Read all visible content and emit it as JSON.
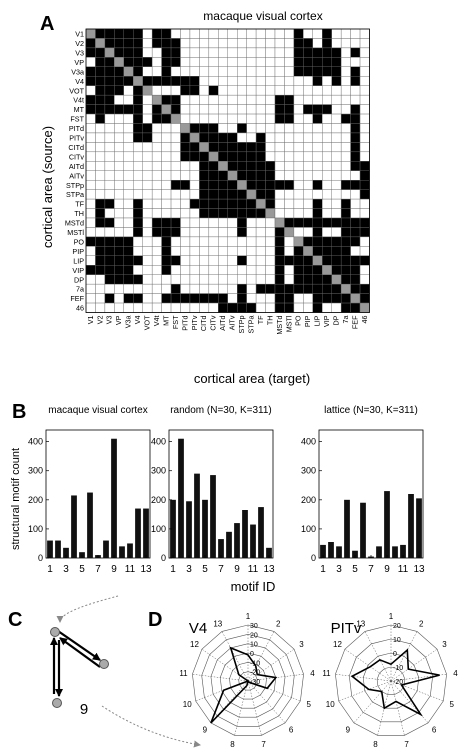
{
  "panel_labels": {
    "a": "A",
    "b": "B",
    "c": "C",
    "d": "D"
  },
  "matrix": {
    "title": "macaque visual cortex",
    "ylabel": "cortical area (source)",
    "xlabel": "cortical area (target)",
    "areas": [
      "V1",
      "V2",
      "V3",
      "VP",
      "V3a",
      "V4",
      "VOT",
      "V4t",
      "MT",
      "FST",
      "PITd",
      "PITv",
      "CITd",
      "CITv",
      "AITd",
      "AITv",
      "STPp",
      "STPa",
      "TF",
      "TH",
      "MSTd",
      "MSTl",
      "PO",
      "PIP",
      "LIP",
      "VIP",
      "DP",
      "7a",
      "FEF",
      "46"
    ],
    "edges": [
      [
        0,
        1
      ],
      [
        0,
        2
      ],
      [
        0,
        3
      ],
      [
        0,
        4
      ],
      [
        0,
        5
      ],
      [
        0,
        7
      ],
      [
        0,
        8
      ],
      [
        0,
        22
      ],
      [
        0,
        25
      ],
      [
        1,
        0
      ],
      [
        1,
        2
      ],
      [
        1,
        3
      ],
      [
        1,
        4
      ],
      [
        1,
        5
      ],
      [
        1,
        7
      ],
      [
        1,
        8
      ],
      [
        1,
        9
      ],
      [
        1,
        22
      ],
      [
        1,
        23
      ],
      [
        1,
        25
      ],
      [
        2,
        0
      ],
      [
        2,
        1
      ],
      [
        2,
        3
      ],
      [
        2,
        4
      ],
      [
        2,
        5
      ],
      [
        2,
        8
      ],
      [
        2,
        9
      ],
      [
        2,
        22
      ],
      [
        2,
        23
      ],
      [
        2,
        24
      ],
      [
        2,
        25
      ],
      [
        2,
        26
      ],
      [
        2,
        28
      ],
      [
        3,
        1
      ],
      [
        3,
        2
      ],
      [
        3,
        4
      ],
      [
        3,
        5
      ],
      [
        3,
        6
      ],
      [
        3,
        8
      ],
      [
        3,
        9
      ],
      [
        3,
        22
      ],
      [
        3,
        23
      ],
      [
        3,
        24
      ],
      [
        3,
        25
      ],
      [
        3,
        26
      ],
      [
        4,
        0
      ],
      [
        4,
        1
      ],
      [
        4,
        2
      ],
      [
        4,
        3
      ],
      [
        4,
        5
      ],
      [
        4,
        8
      ],
      [
        4,
        22
      ],
      [
        4,
        23
      ],
      [
        4,
        24
      ],
      [
        4,
        25
      ],
      [
        4,
        26
      ],
      [
        4,
        28
      ],
      [
        5,
        0
      ],
      [
        5,
        1
      ],
      [
        5,
        2
      ],
      [
        5,
        3
      ],
      [
        5,
        4
      ],
      [
        5,
        6
      ],
      [
        5,
        7
      ],
      [
        5,
        8
      ],
      [
        5,
        9
      ],
      [
        5,
        10
      ],
      [
        5,
        11
      ],
      [
        5,
        24
      ],
      [
        5,
        26
      ],
      [
        5,
        28
      ],
      [
        6,
        1
      ],
      [
        6,
        2
      ],
      [
        6,
        3
      ],
      [
        6,
        5
      ],
      [
        6,
        10
      ],
      [
        6,
        11
      ],
      [
        6,
        13
      ],
      [
        7,
        0
      ],
      [
        7,
        1
      ],
      [
        7,
        2
      ],
      [
        7,
        5
      ],
      [
        7,
        8
      ],
      [
        7,
        9
      ],
      [
        7,
        20
      ],
      [
        7,
        21
      ],
      [
        8,
        0
      ],
      [
        8,
        1
      ],
      [
        8,
        2
      ],
      [
        8,
        3
      ],
      [
        8,
        4
      ],
      [
        8,
        5
      ],
      [
        8,
        7
      ],
      [
        8,
        9
      ],
      [
        8,
        20
      ],
      [
        8,
        21
      ],
      [
        8,
        23
      ],
      [
        8,
        24
      ],
      [
        8,
        25
      ],
      [
        8,
        28
      ],
      [
        9,
        1
      ],
      [
        9,
        5
      ],
      [
        9,
        7
      ],
      [
        9,
        8
      ],
      [
        9,
        20
      ],
      [
        9,
        21
      ],
      [
        9,
        24
      ],
      [
        9,
        27
      ],
      [
        9,
        28
      ],
      [
        10,
        5
      ],
      [
        10,
        6
      ],
      [
        10,
        11
      ],
      [
        10,
        12
      ],
      [
        10,
        13
      ],
      [
        10,
        16
      ],
      [
        10,
        28
      ],
      [
        11,
        5
      ],
      [
        11,
        6
      ],
      [
        11,
        10
      ],
      [
        11,
        12
      ],
      [
        11,
        13
      ],
      [
        11,
        14
      ],
      [
        11,
        15
      ],
      [
        11,
        18
      ],
      [
        11,
        28
      ],
      [
        12,
        10
      ],
      [
        12,
        11
      ],
      [
        12,
        13
      ],
      [
        12,
        14
      ],
      [
        12,
        15
      ],
      [
        12,
        16
      ],
      [
        12,
        17
      ],
      [
        12,
        18
      ],
      [
        12,
        28
      ],
      [
        13,
        10
      ],
      [
        13,
        11
      ],
      [
        13,
        12
      ],
      [
        13,
        14
      ],
      [
        13,
        15
      ],
      [
        13,
        16
      ],
      [
        13,
        17
      ],
      [
        13,
        18
      ],
      [
        13,
        28
      ],
      [
        14,
        12
      ],
      [
        14,
        13
      ],
      [
        14,
        15
      ],
      [
        14,
        16
      ],
      [
        14,
        17
      ],
      [
        14,
        18
      ],
      [
        14,
        19
      ],
      [
        14,
        28
      ],
      [
        14,
        29
      ],
      [
        15,
        12
      ],
      [
        15,
        13
      ],
      [
        15,
        14
      ],
      [
        15,
        16
      ],
      [
        15,
        17
      ],
      [
        15,
        18
      ],
      [
        15,
        19
      ],
      [
        15,
        29
      ],
      [
        16,
        9
      ],
      [
        16,
        10
      ],
      [
        16,
        12
      ],
      [
        16,
        13
      ],
      [
        16,
        14
      ],
      [
        16,
        15
      ],
      [
        16,
        17
      ],
      [
        16,
        18
      ],
      [
        16,
        19
      ],
      [
        16,
        20
      ],
      [
        16,
        21
      ],
      [
        16,
        24
      ],
      [
        16,
        27
      ],
      [
        16,
        28
      ],
      [
        16,
        29
      ],
      [
        17,
        12
      ],
      [
        17,
        13
      ],
      [
        17,
        14
      ],
      [
        17,
        15
      ],
      [
        17,
        16
      ],
      [
        17,
        18
      ],
      [
        17,
        19
      ],
      [
        17,
        29
      ],
      [
        18,
        1
      ],
      [
        18,
        2
      ],
      [
        18,
        5
      ],
      [
        18,
        11
      ],
      [
        18,
        12
      ],
      [
        18,
        13
      ],
      [
        18,
        14
      ],
      [
        18,
        15
      ],
      [
        18,
        16
      ],
      [
        18,
        17
      ],
      [
        18,
        19
      ],
      [
        18,
        24
      ],
      [
        18,
        27
      ],
      [
        19,
        1
      ],
      [
        19,
        5
      ],
      [
        19,
        12
      ],
      [
        19,
        13
      ],
      [
        19,
        14
      ],
      [
        19,
        15
      ],
      [
        19,
        16
      ],
      [
        19,
        17
      ],
      [
        19,
        18
      ],
      [
        19,
        24
      ],
      [
        19,
        27
      ],
      [
        20,
        1
      ],
      [
        20,
        2
      ],
      [
        20,
        5
      ],
      [
        20,
        7
      ],
      [
        20,
        8
      ],
      [
        20,
        9
      ],
      [
        20,
        16
      ],
      [
        20,
        21
      ],
      [
        20,
        22
      ],
      [
        20,
        23
      ],
      [
        20,
        24
      ],
      [
        20,
        25
      ],
      [
        20,
        26
      ],
      [
        20,
        27
      ],
      [
        20,
        28
      ],
      [
        20,
        29
      ],
      [
        21,
        5
      ],
      [
        21,
        7
      ],
      [
        21,
        8
      ],
      [
        21,
        9
      ],
      [
        21,
        16
      ],
      [
        21,
        20
      ],
      [
        21,
        24
      ],
      [
        21,
        27
      ],
      [
        21,
        28
      ],
      [
        21,
        29
      ],
      [
        22,
        0
      ],
      [
        22,
        1
      ],
      [
        22,
        2
      ],
      [
        22,
        3
      ],
      [
        22,
        4
      ],
      [
        22,
        8
      ],
      [
        22,
        20
      ],
      [
        22,
        23
      ],
      [
        22,
        24
      ],
      [
        22,
        25
      ],
      [
        22,
        26
      ],
      [
        22,
        27
      ],
      [
        22,
        28
      ],
      [
        23,
        1
      ],
      [
        23,
        2
      ],
      [
        23,
        3
      ],
      [
        23,
        4
      ],
      [
        23,
        8
      ],
      [
        23,
        20
      ],
      [
        23,
        22
      ],
      [
        23,
        24
      ],
      [
        23,
        25
      ],
      [
        23,
        26
      ],
      [
        23,
        27
      ],
      [
        24,
        1
      ],
      [
        24,
        2
      ],
      [
        24,
        3
      ],
      [
        24,
        4
      ],
      [
        24,
        5
      ],
      [
        24,
        8
      ],
      [
        24,
        9
      ],
      [
        24,
        16
      ],
      [
        24,
        20
      ],
      [
        24,
        21
      ],
      [
        24,
        22
      ],
      [
        24,
        23
      ],
      [
        24,
        25
      ],
      [
        24,
        26
      ],
      [
        24,
        27
      ],
      [
        24,
        28
      ],
      [
        24,
        29
      ],
      [
        25,
        0
      ],
      [
        25,
        1
      ],
      [
        25,
        2
      ],
      [
        25,
        3
      ],
      [
        25,
        4
      ],
      [
        25,
        8
      ],
      [
        25,
        20
      ],
      [
        25,
        22
      ],
      [
        25,
        23
      ],
      [
        25,
        24
      ],
      [
        25,
        26
      ],
      [
        25,
        27
      ],
      [
        25,
        28
      ],
      [
        26,
        2
      ],
      [
        26,
        3
      ],
      [
        26,
        4
      ],
      [
        26,
        5
      ],
      [
        26,
        20
      ],
      [
        26,
        22
      ],
      [
        26,
        23
      ],
      [
        26,
        24
      ],
      [
        26,
        25
      ],
      [
        26,
        27
      ],
      [
        26,
        28
      ],
      [
        27,
        9
      ],
      [
        27,
        16
      ],
      [
        27,
        18
      ],
      [
        27,
        19
      ],
      [
        27,
        20
      ],
      [
        27,
        21
      ],
      [
        27,
        22
      ],
      [
        27,
        23
      ],
      [
        27,
        24
      ],
      [
        27,
        25
      ],
      [
        27,
        26
      ],
      [
        27,
        28
      ],
      [
        27,
        29
      ],
      [
        28,
        2
      ],
      [
        28,
        4
      ],
      [
        28,
        5
      ],
      [
        28,
        8
      ],
      [
        28,
        9
      ],
      [
        28,
        10
      ],
      [
        28,
        11
      ],
      [
        28,
        12
      ],
      [
        28,
        13
      ],
      [
        28,
        14
      ],
      [
        28,
        16
      ],
      [
        28,
        20
      ],
      [
        28,
        21
      ],
      [
        28,
        24
      ],
      [
        28,
        25
      ],
      [
        28,
        26
      ],
      [
        28,
        27
      ],
      [
        28,
        29
      ],
      [
        29,
        14
      ],
      [
        29,
        15
      ],
      [
        29,
        16
      ],
      [
        29,
        17
      ],
      [
        29,
        20
      ],
      [
        29,
        21
      ],
      [
        29,
        24
      ],
      [
        29,
        27
      ],
      [
        29,
        28
      ]
    ],
    "colors": {
      "edge": "#000000",
      "diagonal": "#999999",
      "empty": "#ffffff",
      "grid": "#666666"
    }
  },
  "chart_data": [
    {
      "type": "bar",
      "title": "macaque visual cortex",
      "categories": [
        1,
        2,
        3,
        4,
        5,
        6,
        7,
        8,
        9,
        10,
        11,
        12,
        13
      ],
      "values": [
        60,
        60,
        35,
        215,
        20,
        225,
        10,
        60,
        410,
        40,
        50,
        170,
        170
      ],
      "ylim": [
        0,
        440
      ],
      "yticks": [
        0,
        100,
        200,
        300,
        400
      ],
      "xticks": [
        1,
        3,
        5,
        7,
        9,
        11,
        13
      ],
      "ylabel": "structural motif count",
      "xlabel": ""
    },
    {
      "type": "bar",
      "title": "random (N=30, K=311)",
      "categories": [
        1,
        2,
        3,
        4,
        5,
        6,
        7,
        8,
        9,
        10,
        11,
        12,
        13
      ],
      "values": [
        200,
        410,
        195,
        290,
        200,
        285,
        65,
        90,
        120,
        165,
        115,
        175,
        35
      ],
      "ylim": [
        0,
        440
      ],
      "yticks": [
        0,
        100,
        200,
        300,
        400
      ],
      "xticks": [
        1,
        3,
        5,
        7,
        9,
        11,
        13
      ],
      "ylabel": "",
      "xlabel": "motif ID"
    },
    {
      "type": "bar",
      "title": "lattice (N=30, K=311)",
      "categories": [
        1,
        2,
        3,
        4,
        5,
        6,
        7,
        8,
        9,
        10,
        11,
        12,
        13
      ],
      "values": [
        45,
        55,
        40,
        200,
        25,
        190,
        5,
        40,
        230,
        40,
        45,
        220,
        205
      ],
      "ylim": [
        0,
        440
      ],
      "yticks": [
        0,
        100,
        200,
        300,
        400
      ],
      "xticks": [
        1,
        3,
        5,
        7,
        9,
        11,
        13
      ],
      "ylabel": "",
      "xlabel": ""
    }
  ],
  "motif": {
    "label": "9"
  },
  "radar": [
    {
      "title": "V4",
      "spokes": [
        "1",
        "2",
        "3",
        "4",
        "5",
        "6",
        "7",
        "8",
        "9",
        "10",
        "11",
        "12",
        "13"
      ],
      "ring_labels": [
        "-30",
        "-20",
        "-10",
        "0",
        "10",
        "20",
        "30"
      ],
      "rmin": -30,
      "rmax": 30,
      "values": [
        -2,
        -12,
        -18,
        0,
        -8,
        -28,
        -30,
        -25,
        30,
        -2,
        -30,
        -18,
        10
      ]
    },
    {
      "title": "PITv",
      "spokes": [
        "1",
        "2",
        "3",
        "4",
        "5",
        "6",
        "7",
        "8",
        "9",
        "10",
        "11",
        "12",
        "13"
      ],
      "ring_labels": [
        "-20",
        "-10",
        "0",
        "10",
        "20"
      ],
      "rmin": -20,
      "rmax": 20,
      "values": [
        -8,
        5,
        -5,
        15,
        -12,
        12,
        -5,
        0,
        -10,
        -3,
        8,
        -2,
        -3
      ]
    }
  ]
}
